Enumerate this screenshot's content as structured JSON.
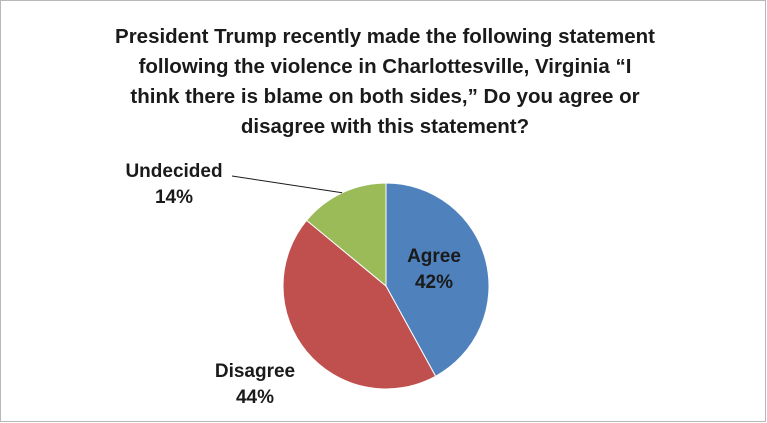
{
  "chart_data": {
    "type": "pie",
    "title_lines": [
      "President Trump recently made the following statement",
      "following the violence in Charlottesville, Virginia “I",
      "think there is blame on both sides,” Do you agree or",
      "disagree with this statement?"
    ],
    "slices": [
      {
        "label": "Agree",
        "value": 42,
        "display": "42%",
        "color": "#4f81bd"
      },
      {
        "label": "Disagree",
        "value": 44,
        "display": "44%",
        "color": "#c0504d"
      },
      {
        "label": "Undecided",
        "value": 14,
        "display": "14%",
        "color": "#9bbb59"
      }
    ],
    "start_angle_deg": 0,
    "direction": "clockwise",
    "legend": "none",
    "label_placement": "data labels (Agree inside slice; Disagree and Undecided outside, Undecided with leader line)"
  }
}
